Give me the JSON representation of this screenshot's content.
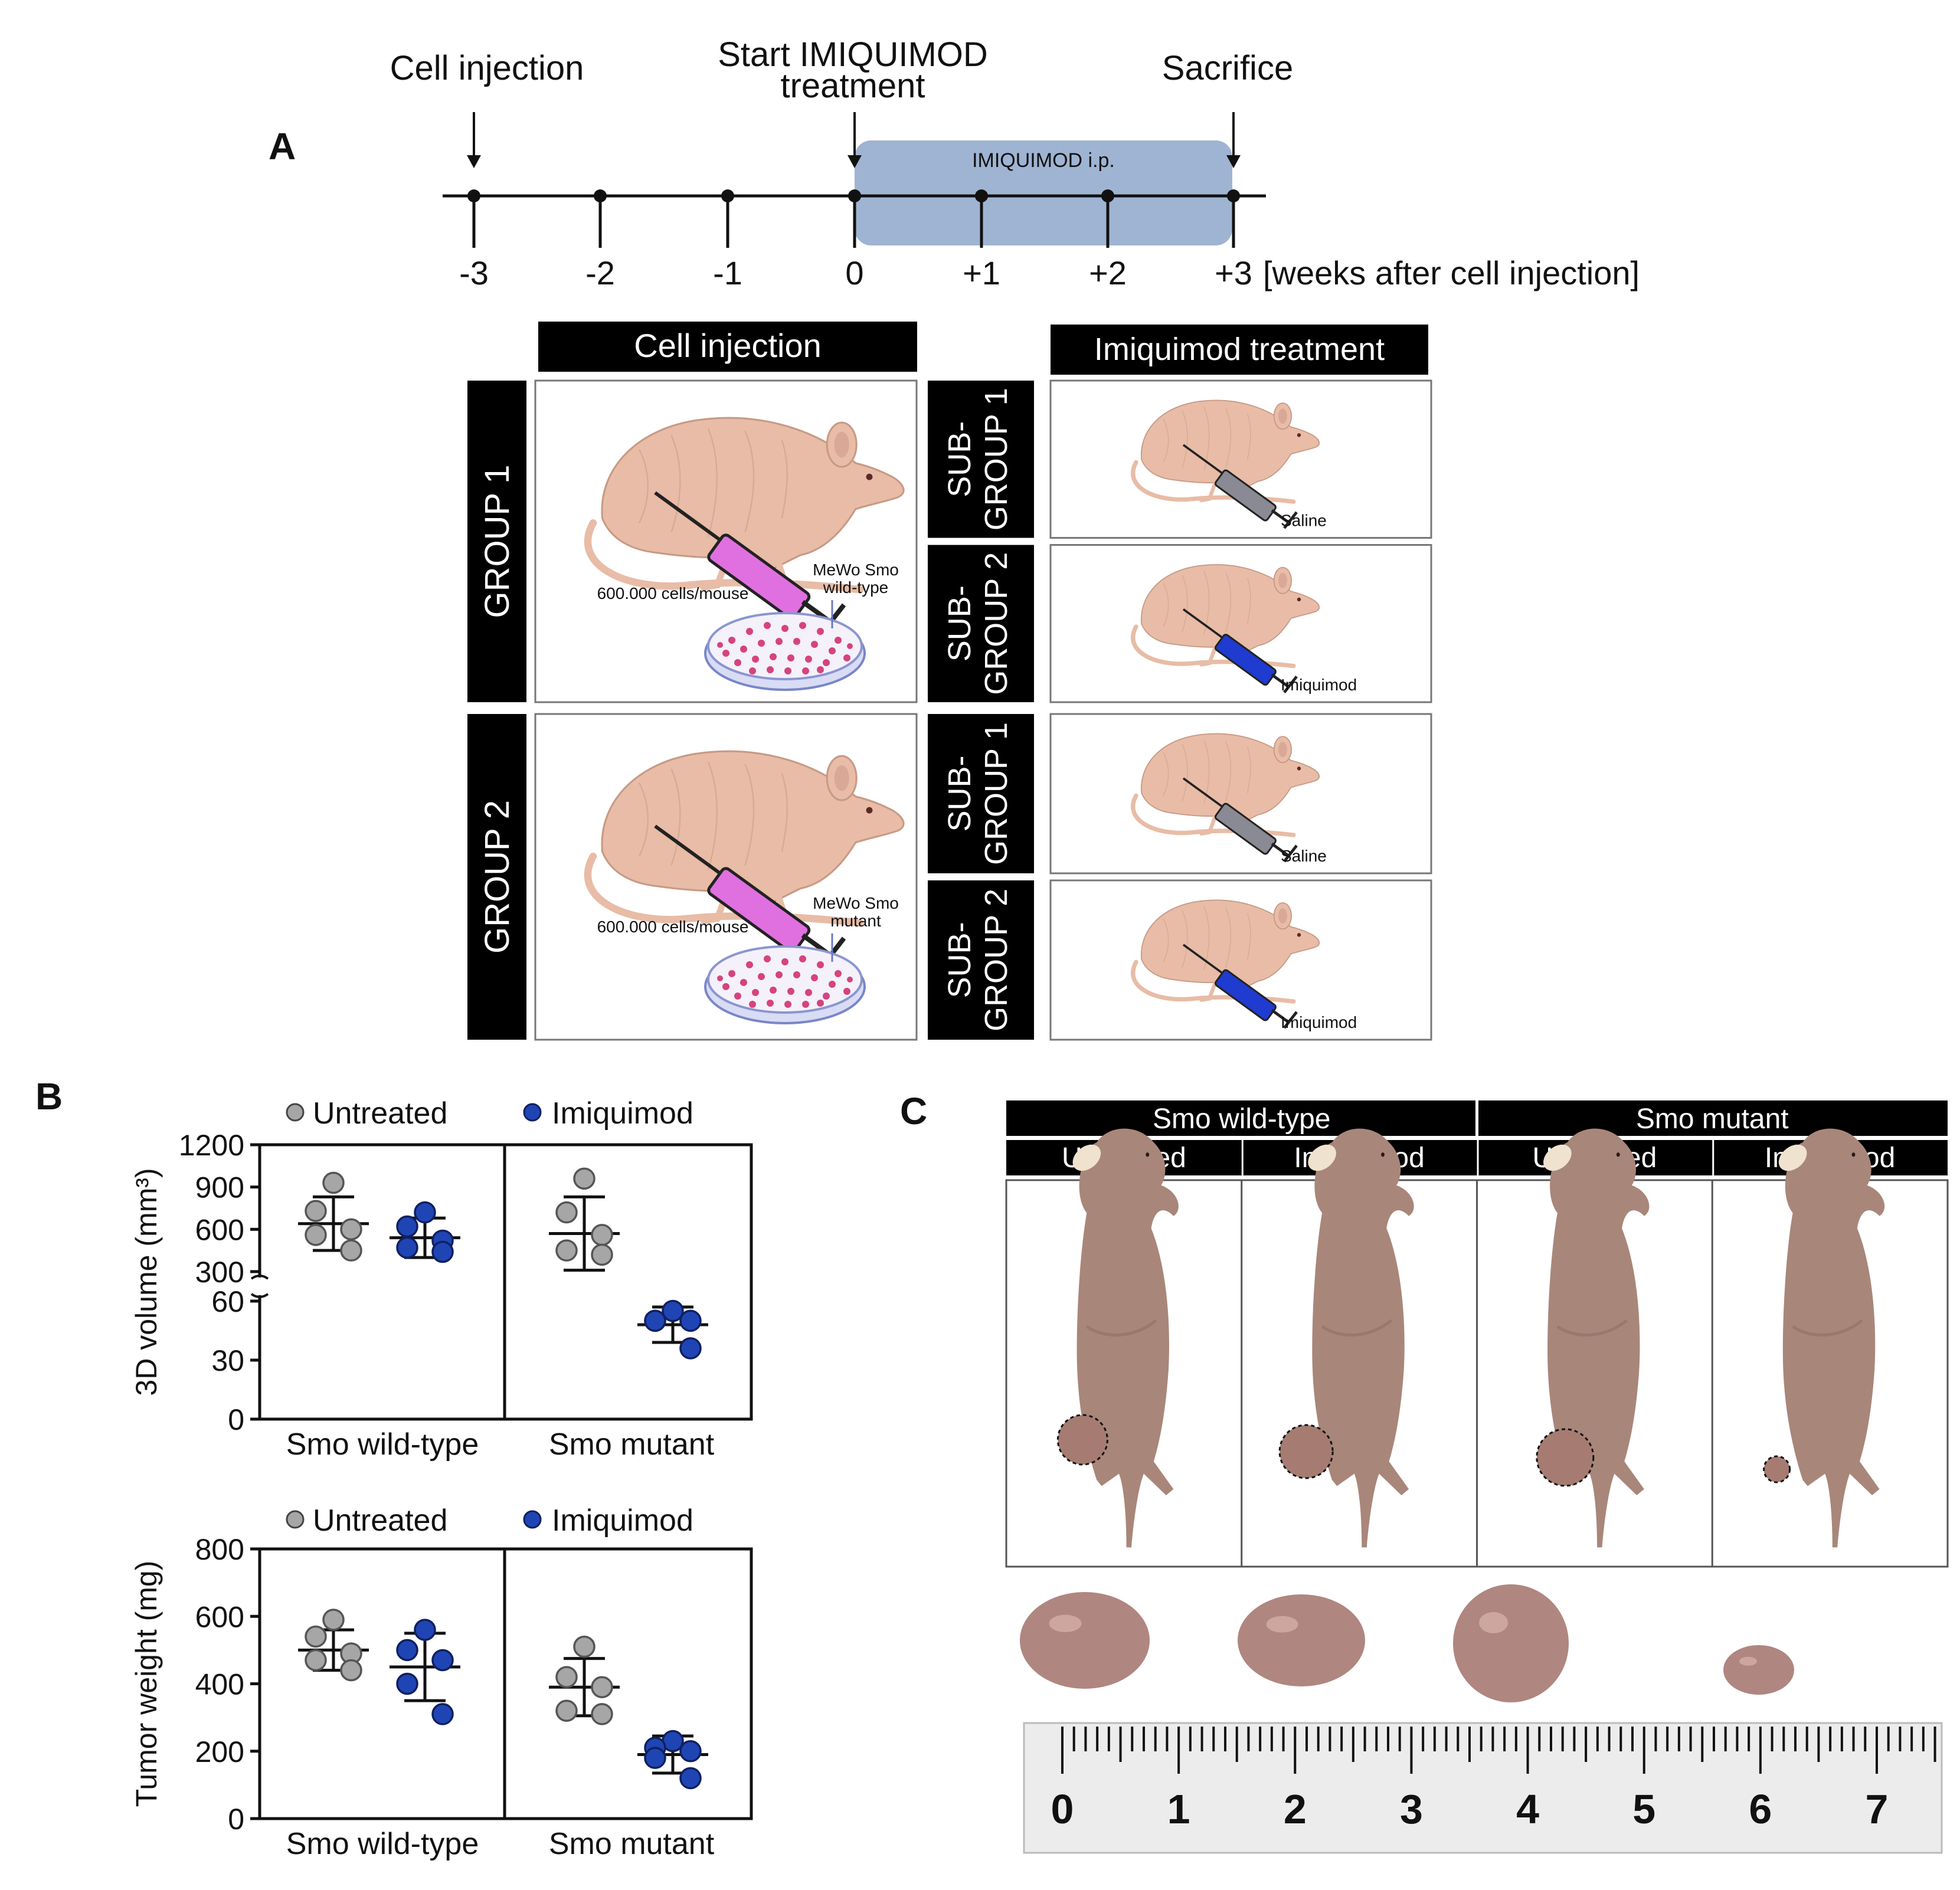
{
  "panel_labels": {
    "a": "A",
    "b": "B",
    "c": "C"
  },
  "timeline": {
    "events": {
      "cell_injection": "Cell injection",
      "start_treatment_line1": "Start IMIQUIMOD",
      "start_treatment_line2": "treatment",
      "sacrifice": "Sacrifice"
    },
    "bar_label": "IMIQUIMOD i.p.",
    "ticks": [
      "-3",
      "-2",
      "-1",
      "0",
      "+1",
      "+2",
      "+3"
    ],
    "unit": "[weeks after cell injection]"
  },
  "design": {
    "header_cell": "Cell injection",
    "header_treat": "Imiquimod treatment",
    "groups": [
      {
        "label": "GROUP 1",
        "cells": "600.000 cells/mouse",
        "line1": "MeWo Smo",
        "line2": "wild-type",
        "subgroups": [
          {
            "label1": "SUB-",
            "label2": "GROUP 1",
            "agent": "Saline"
          },
          {
            "label1": "SUB-",
            "label2": "GROUP 2",
            "agent": "Imiquimod"
          }
        ]
      },
      {
        "label": "GROUP 2",
        "cells": "600.000 cells/mouse",
        "line1": "MeWo Smo",
        "line2": "mutant",
        "subgroups": [
          {
            "label1": "SUB-",
            "label2": "GROUP 1",
            "agent": "Saline"
          },
          {
            "label1": "SUB-",
            "label2": "GROUP 2",
            "agent": "Imiquimod"
          }
        ]
      }
    ]
  },
  "legend": {
    "untreated": "Untreated",
    "imiquimod": "Imiquimod"
  },
  "colors": {
    "untreated": "#a6a6a6",
    "imiquimod": "#1f45b4",
    "bar": "#9fb4d2",
    "skin": "#e8bca6",
    "skin_dark": "#c79a86",
    "photo_skin": "#a9867a"
  },
  "chart_data": [
    {
      "type": "scatter",
      "ylabel": "3D volume (mm³)",
      "y_ticks_upper": [
        "1200",
        "900",
        "600",
        "300"
      ],
      "y_ticks_lower": [
        "60",
        "30",
        "0"
      ],
      "upper_range": [
        300,
        1200
      ],
      "lower_range": [
        0,
        60
      ],
      "categories": [
        "Smo wild-type",
        "Smo mutant"
      ],
      "series": [
        {
          "name": "Untreated",
          "groups": [
            [
              930,
              730,
              600,
              560,
              450
            ],
            [
              960,
              720,
              560,
              450,
              420
            ]
          ],
          "mean": [
            640,
            570
          ],
          "sd": [
            190,
            260
          ]
        },
        {
          "name": "Imiquimod",
          "groups": [
            [
              720,
              620,
              520,
              470,
              440
            ],
            [
              55,
              50,
              50,
              50,
              36
            ]
          ],
          "mean": [
            540,
            48
          ],
          "sd": [
            140,
            9
          ]
        }
      ]
    },
    {
      "type": "scatter",
      "ylabel": "Tumor weight (mg)",
      "y_ticks": [
        "800",
        "600",
        "400",
        "200",
        "0"
      ],
      "ylim": [
        0,
        800
      ],
      "categories": [
        "Smo wild-type",
        "Smo mutant"
      ],
      "series": [
        {
          "name": "Untreated",
          "groups": [
            [
              590,
              540,
              490,
              470,
              440
            ],
            [
              510,
              420,
              390,
              320,
              310
            ]
          ],
          "mean": [
            500,
            390
          ],
          "sd": [
            60,
            85
          ]
        },
        {
          "name": "Imiquimod",
          "groups": [
            [
              560,
              500,
              470,
              400,
              310
            ],
            [
              230,
              210,
              200,
              180,
              120
            ]
          ],
          "mean": [
            450,
            190
          ],
          "sd": [
            100,
            55
          ]
        }
      ]
    }
  ],
  "photos": {
    "top_headers": [
      "Smo wild-type",
      "Smo mutant"
    ],
    "sub_headers": [
      "Untreated",
      "Imiquimod",
      "Untreated",
      "Imiquimod"
    ],
    "ruler_numbers": [
      "0",
      "1",
      "2",
      "3",
      "4",
      "5",
      "6",
      "7"
    ]
  }
}
